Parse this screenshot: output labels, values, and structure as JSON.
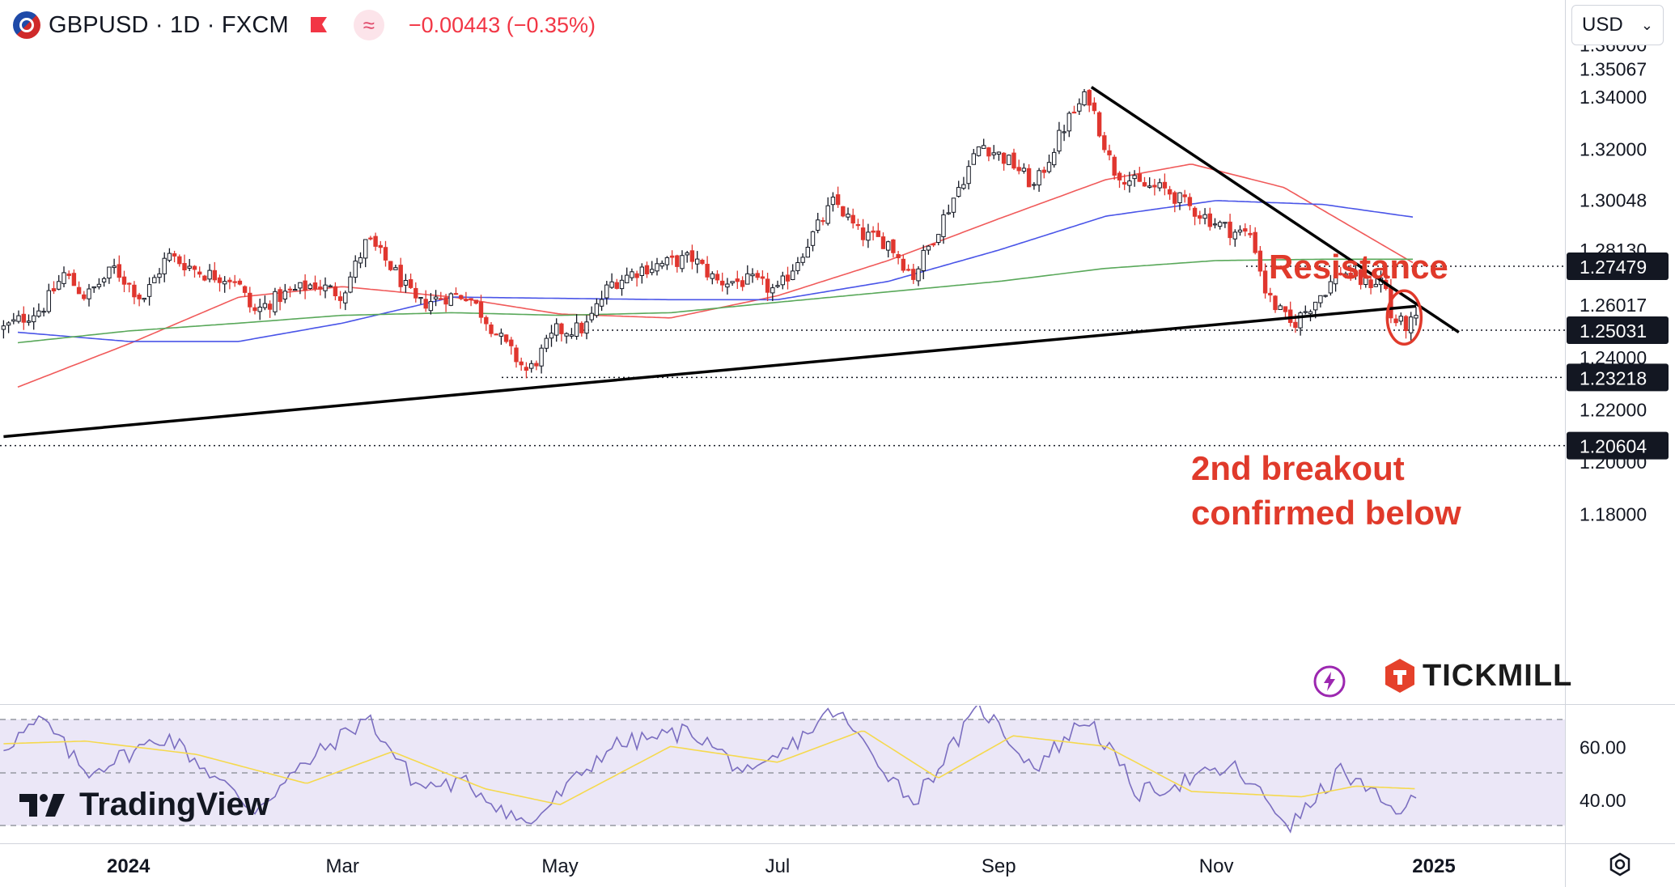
{
  "header": {
    "symbol_line": "GBPUSD · 1D · FXCM",
    "approx_symbol": "≈",
    "change_text": "−0.00443 (−0.35%)"
  },
  "currency_select": {
    "value": "USD"
  },
  "branding": {
    "tradingview": "TradingView",
    "tickmill": "TICKMILL"
  },
  "colors": {
    "up_candle": "#131722",
    "down_candle": "#e0362f",
    "ma_red": "#f05a5a",
    "ma_blue": "#4a55e8",
    "ma_green": "#59a85a",
    "rsi_line": "#7b6ec0",
    "rsi_ma": "#f5d94e",
    "rsi_band": "#ebe7f7",
    "annotation": "#e03a2b"
  },
  "chart_data": [
    {
      "type": "candlestick",
      "title": "GBPUSD · 1D · FXCM",
      "ylim": [
        1.167,
        1.359
      ],
      "x_tick_labels": [
        "2024",
        "Mar",
        "May",
        "Jul",
        "Sep",
        "Nov",
        "2025"
      ],
      "y_tick_labels": [
        "1.36000",
        "1.35067",
        "1.34000",
        "1.32000",
        "1.30048",
        "1.28130",
        "1.26017",
        "1.24000",
        "1.22000",
        "1.20000",
        "1.18000"
      ],
      "price_line_labels": [
        {
          "text": "1.27479",
          "value": 1.27479
        },
        {
          "text": "1.25031",
          "value": 1.25031
        },
        {
          "text": "1.23218",
          "value": 1.23218
        },
        {
          "text": "1.20604",
          "value": 1.20604
        }
      ],
      "annotations": [
        {
          "text": "Resistance"
        },
        {
          "text": "2nd breakout"
        },
        {
          "text": "confirmed below"
        }
      ],
      "trendlines": {
        "resistance": {
          "from": [
            "2024-09-27",
            1.3435
          ],
          "to": [
            "2025-01-08",
            1.2495
          ]
        },
        "support": {
          "from": [
            "2023-11-27",
            1.2095
          ],
          "to": [
            "2024-12-27",
            1.2595
          ]
        }
      },
      "moving_averages": [
        {
          "color": "red",
          "values": [
            {
              "x": "2023-12-01",
              "y": 1.2285
            },
            {
              "x": "2024-01-01",
              "y": 1.245
            },
            {
              "x": "2024-02-01",
              "y": 1.263
            },
            {
              "x": "2024-03-01",
              "y": 1.267
            },
            {
              "x": "2024-04-01",
              "y": 1.263
            },
            {
              "x": "2024-05-01",
              "y": 1.2565
            },
            {
              "x": "2024-06-01",
              "y": 1.255
            },
            {
              "x": "2024-07-01",
              "y": 1.2635
            },
            {
              "x": "2024-08-01",
              "y": 1.277
            },
            {
              "x": "2024-09-01",
              "y": 1.293
            },
            {
              "x": "2024-10-01",
              "y": 1.308
            },
            {
              "x": "2024-10-25",
              "y": 1.314
            },
            {
              "x": "2024-11-20",
              "y": 1.305
            },
            {
              "x": "2024-12-27",
              "y": 1.2755
            }
          ]
        },
        {
          "color": "blue",
          "values": [
            {
              "x": "2023-12-01",
              "y": 1.2495
            },
            {
              "x": "2024-01-01",
              "y": 1.246
            },
            {
              "x": "2024-02-01",
              "y": 1.246
            },
            {
              "x": "2024-03-01",
              "y": 1.253
            },
            {
              "x": "2024-04-01",
              "y": 1.263
            },
            {
              "x": "2024-05-01",
              "y": 1.2625
            },
            {
              "x": "2024-06-01",
              "y": 1.262
            },
            {
              "x": "2024-07-01",
              "y": 1.262
            },
            {
              "x": "2024-08-01",
              "y": 1.269
            },
            {
              "x": "2024-09-01",
              "y": 1.281
            },
            {
              "x": "2024-10-01",
              "y": 1.294
            },
            {
              "x": "2024-11-01",
              "y": 1.3
            },
            {
              "x": "2024-12-01",
              "y": 1.2985
            },
            {
              "x": "2024-12-27",
              "y": 1.2935
            }
          ]
        },
        {
          "color": "green",
          "values": [
            {
              "x": "2023-12-01",
              "y": 1.2455
            },
            {
              "x": "2024-01-01",
              "y": 1.25
            },
            {
              "x": "2024-02-01",
              "y": 1.253
            },
            {
              "x": "2024-03-01",
              "y": 1.256
            },
            {
              "x": "2024-04-01",
              "y": 1.257
            },
            {
              "x": "2024-05-01",
              "y": 1.256
            },
            {
              "x": "2024-06-01",
              "y": 1.257
            },
            {
              "x": "2024-07-01",
              "y": 1.261
            },
            {
              "x": "2024-08-01",
              "y": 1.265
            },
            {
              "x": "2024-09-01",
              "y": 1.269
            },
            {
              "x": "2024-10-01",
              "y": 1.274
            },
            {
              "x": "2024-11-01",
              "y": 1.277
            },
            {
              "x": "2024-12-01",
              "y": 1.2775
            },
            {
              "x": "2024-12-27",
              "y": 1.2775
            }
          ]
        }
      ],
      "close_path": [
        {
          "x": "2023-11-27",
          "y": 1.251
        },
        {
          "x": "2023-12-08",
          "y": 1.259
        },
        {
          "x": "2023-12-14",
          "y": 1.272
        },
        {
          "x": "2023-12-20",
          "y": 1.263
        },
        {
          "x": "2023-12-28",
          "y": 1.274
        },
        {
          "x": "2024-01-05",
          "y": 1.262
        },
        {
          "x": "2024-01-12",
          "y": 1.279
        },
        {
          "x": "2024-01-22",
          "y": 1.272
        },
        {
          "x": "2024-01-31",
          "y": 1.27
        },
        {
          "x": "2024-02-05",
          "y": 1.257
        },
        {
          "x": "2024-02-12",
          "y": 1.263
        },
        {
          "x": "2024-02-22",
          "y": 1.268
        },
        {
          "x": "2024-03-01",
          "y": 1.264
        },
        {
          "x": "2024-03-08",
          "y": 1.285
        },
        {
          "x": "2024-03-15",
          "y": 1.274
        },
        {
          "x": "2024-03-22",
          "y": 1.26
        },
        {
          "x": "2024-03-29",
          "y": 1.263
        },
        {
          "x": "2024-04-05",
          "y": 1.264
        },
        {
          "x": "2024-04-10",
          "y": 1.255
        },
        {
          "x": "2024-04-16",
          "y": 1.244
        },
        {
          "x": "2024-04-22",
          "y": 1.234
        },
        {
          "x": "2024-04-30",
          "y": 1.25
        },
        {
          "x": "2024-05-08",
          "y": 1.251
        },
        {
          "x": "2024-05-15",
          "y": 1.268
        },
        {
          "x": "2024-05-24",
          "y": 1.274
        },
        {
          "x": "2024-06-07",
          "y": 1.278
        },
        {
          "x": "2024-06-14",
          "y": 1.269
        },
        {
          "x": "2024-06-24",
          "y": 1.269
        },
        {
          "x": "2024-07-01",
          "y": 1.265
        },
        {
          "x": "2024-07-10",
          "y": 1.285
        },
        {
          "x": "2024-07-17",
          "y": 1.3
        },
        {
          "x": "2024-07-24",
          "y": 1.287
        },
        {
          "x": "2024-08-01",
          "y": 1.284
        },
        {
          "x": "2024-08-08",
          "y": 1.271
        },
        {
          "x": "2024-08-16",
          "y": 1.292
        },
        {
          "x": "2024-08-27",
          "y": 1.322
        },
        {
          "x": "2024-09-06",
          "y": 1.313
        },
        {
          "x": "2024-09-11",
          "y": 1.305
        },
        {
          "x": "2024-09-20",
          "y": 1.33
        },
        {
          "x": "2024-09-26",
          "y": 1.341
        },
        {
          "x": "2024-10-03",
          "y": 1.312
        },
        {
          "x": "2024-10-10",
          "y": 1.306
        },
        {
          "x": "2024-10-18",
          "y": 1.304
        },
        {
          "x": "2024-10-24",
          "y": 1.298
        },
        {
          "x": "2024-10-31",
          "y": 1.292
        },
        {
          "x": "2024-11-06",
          "y": 1.288
        },
        {
          "x": "2024-11-11",
          "y": 1.287
        },
        {
          "x": "2024-11-15",
          "y": 1.264
        },
        {
          "x": "2024-11-22",
          "y": 1.252
        },
        {
          "x": "2024-11-29",
          "y": 1.262
        },
        {
          "x": "2024-12-06",
          "y": 1.273
        },
        {
          "x": "2024-12-13",
          "y": 1.268
        },
        {
          "x": "2024-12-18",
          "y": 1.27
        },
        {
          "x": "2024-12-20",
          "y": 1.255
        },
        {
          "x": "2024-12-24",
          "y": 1.252
        },
        {
          "x": "2024-12-27",
          "y": 1.2535
        }
      ]
    },
    {
      "type": "line",
      "y_tick_labels": [
        "60.00",
        "40.00"
      ],
      "ylim": [
        22,
        78
      ],
      "bands": [
        30,
        50,
        70
      ],
      "series": [
        {
          "values": [
            {
              "x": "2023-11-27",
              "y": 60
            },
            {
              "x": "2023-12-08",
              "y": 70
            },
            {
              "x": "2023-12-20",
              "y": 50
            },
            {
              "x": "2024-01-12",
              "y": 64
            },
            {
              "x": "2024-02-05",
              "y": 36
            },
            {
              "x": "2024-02-22",
              "y": 56
            },
            {
              "x": "2024-03-08",
              "y": 71
            },
            {
              "x": "2024-03-22",
              "y": 45
            },
            {
              "x": "2024-04-05",
              "y": 46
            },
            {
              "x": "2024-04-22",
              "y": 30
            },
            {
              "x": "2024-05-15",
              "y": 60
            },
            {
              "x": "2024-06-07",
              "y": 66
            },
            {
              "x": "2024-06-24",
              "y": 48
            },
            {
              "x": "2024-07-17",
              "y": 74
            },
            {
              "x": "2024-08-08",
              "y": 39
            },
            {
              "x": "2024-08-27",
              "y": 75
            },
            {
              "x": "2024-09-11",
              "y": 52
            },
            {
              "x": "2024-09-26",
              "y": 71
            },
            {
              "x": "2024-10-10",
              "y": 42
            },
            {
              "x": "2024-11-06",
              "y": 52
            },
            {
              "x": "2024-11-22",
              "y": 30
            },
            {
              "x": "2024-12-06",
              "y": 51
            },
            {
              "x": "2024-12-20",
              "y": 36
            },
            {
              "x": "2024-12-27",
              "y": 39
            }
          ]
        },
        {
          "values": [
            {
              "x": "2023-11-27",
              "y": 61
            },
            {
              "x": "2023-12-20",
              "y": 62
            },
            {
              "x": "2024-01-20",
              "y": 57
            },
            {
              "x": "2024-02-20",
              "y": 46
            },
            {
              "x": "2024-03-15",
              "y": 58
            },
            {
              "x": "2024-04-10",
              "y": 44
            },
            {
              "x": "2024-05-01",
              "y": 38
            },
            {
              "x": "2024-06-01",
              "y": 60
            },
            {
              "x": "2024-07-01",
              "y": 54
            },
            {
              "x": "2024-07-25",
              "y": 66
            },
            {
              "x": "2024-08-15",
              "y": 48
            },
            {
              "x": "2024-09-05",
              "y": 64
            },
            {
              "x": "2024-10-01",
              "y": 60
            },
            {
              "x": "2024-10-25",
              "y": 43
            },
            {
              "x": "2024-11-25",
              "y": 41
            },
            {
              "x": "2024-12-10",
              "y": 45
            },
            {
              "x": "2024-12-27",
              "y": 44
            }
          ]
        }
      ]
    }
  ]
}
